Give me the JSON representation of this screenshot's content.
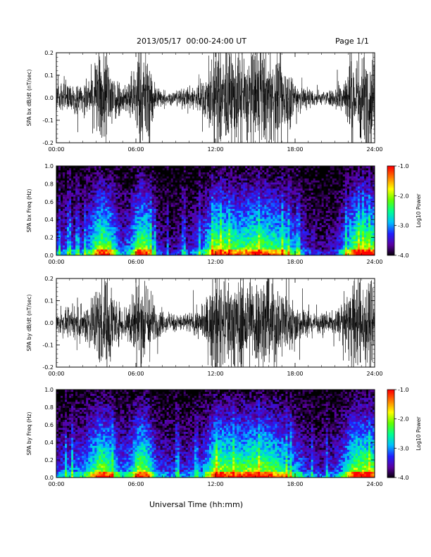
{
  "header": {
    "title": "2013/05/17  00:00-24:00 UT",
    "page": "Page 1/1"
  },
  "xlabel": "Universal Time (hh:mm)",
  "chart_data": [
    {
      "type": "line",
      "ylabel": "SPA bx dB/dt (nT/sec)",
      "xlim": [
        "00:00",
        "24:00"
      ],
      "ylim": [
        -0.2,
        0.2
      ],
      "x_ticks": [
        "00:00",
        "06:00",
        "12:00",
        "18:00",
        "24:00"
      ],
      "y_ticks": [
        "-0.2",
        "-0.1",
        "0.0",
        "0.1",
        "0.2"
      ],
      "color": "#000000",
      "amplitude_envelope": {
        "hours": [
          0,
          1,
          2,
          2.8,
          3.3,
          4,
          4.6,
          5,
          5.6,
          6.2,
          6.8,
          7.6,
          8.5,
          10,
          11,
          12,
          13,
          14,
          15,
          16,
          17,
          17.5,
          18,
          19,
          20,
          21,
          21.8,
          22.5,
          23.3,
          24
        ],
        "values": [
          0.06,
          0.07,
          0.06,
          0.14,
          0.22,
          0.22,
          0.1,
          0.06,
          0.1,
          0.22,
          0.22,
          0.05,
          0.03,
          0.05,
          0.08,
          0.22,
          0.22,
          0.22,
          0.22,
          0.22,
          0.18,
          0.15,
          0.1,
          0.05,
          0.03,
          0.04,
          0.12,
          0.22,
          0.22,
          0.22
        ]
      }
    },
    {
      "type": "heatmap",
      "ylabel": "SPA bx Freq (Hz)",
      "xlim": [
        "00:00",
        "24:00"
      ],
      "ylim": [
        0.0,
        1.0
      ],
      "x_ticks": [
        "00:00",
        "06:00",
        "12:00",
        "18:00",
        "24:00"
      ],
      "y_ticks": [
        "0.0",
        "0.2",
        "0.4",
        "0.6",
        "0.8",
        "1.0"
      ],
      "colorbar": {
        "label": "Log10 Power",
        "range": [
          -4.0,
          -1.0
        ],
        "ticks": [
          "-1.0",
          "-2.0",
          "-3.0",
          "-4.0"
        ],
        "colormap": [
          "#000000",
          "#5a00a0",
          "#2020ff",
          "#00c0ff",
          "#00ff90",
          "#60ff00",
          "#ffff00",
          "#ff8000",
          "#ff0000"
        ]
      },
      "activity_profile": {
        "hours": [
          0,
          1,
          2,
          2.8,
          3.3,
          4,
          4.6,
          5,
          5.6,
          6.2,
          6.8,
          7.6,
          8.5,
          10,
          11,
          12,
          13,
          14,
          15,
          16,
          17,
          17.5,
          18,
          19,
          20,
          21,
          21.8,
          22.5,
          23.3,
          24
        ],
        "values": [
          0.35,
          0.4,
          0.35,
          0.7,
          0.95,
          0.85,
          0.5,
          0.35,
          0.5,
          0.95,
          0.9,
          0.3,
          0.2,
          0.3,
          0.45,
          0.95,
          0.85,
          0.8,
          0.9,
          0.85,
          0.75,
          0.65,
          0.5,
          0.3,
          0.2,
          0.25,
          0.55,
          0.9,
          0.95,
          0.85
        ]
      }
    },
    {
      "type": "line",
      "ylabel": "SPA by dB/dt (nT/sec)",
      "xlim": [
        "00:00",
        "24:00"
      ],
      "ylim": [
        -0.2,
        0.2
      ],
      "x_ticks": [
        "00:00",
        "06:00",
        "12:00",
        "18:00",
        "24:00"
      ],
      "y_ticks": [
        "-0.2",
        "-0.1",
        "0.0",
        "0.1",
        "0.2"
      ],
      "color": "#000000",
      "amplitude_envelope": {
        "hours": [
          0,
          1,
          2,
          2.8,
          3.3,
          4,
          4.6,
          5,
          5.6,
          6.2,
          6.8,
          7.6,
          8.5,
          10,
          11,
          12,
          13,
          14,
          15,
          16,
          17,
          17.5,
          18,
          19,
          20,
          21,
          21.8,
          22.5,
          23.3,
          24
        ],
        "values": [
          0.05,
          0.06,
          0.08,
          0.15,
          0.22,
          0.22,
          0.1,
          0.08,
          0.12,
          0.22,
          0.22,
          0.07,
          0.04,
          0.05,
          0.07,
          0.22,
          0.22,
          0.22,
          0.22,
          0.22,
          0.18,
          0.14,
          0.1,
          0.06,
          0.04,
          0.05,
          0.12,
          0.22,
          0.22,
          0.22
        ]
      }
    },
    {
      "type": "heatmap",
      "ylabel": "SPA by Freq (Hz)",
      "xlim": [
        "00:00",
        "24:00"
      ],
      "ylim": [
        0.0,
        1.0
      ],
      "x_ticks": [
        "00:00",
        "06:00",
        "12:00",
        "18:00",
        "24:00"
      ],
      "y_ticks": [
        "0.0",
        "0.2",
        "0.4",
        "0.6",
        "0.8",
        "1.0"
      ],
      "colorbar": {
        "label": "Log10 Power",
        "range": [
          -4.0,
          -1.0
        ],
        "ticks": [
          "-1.0",
          "-2.0",
          "-3.0",
          "-4.0"
        ],
        "colormap": [
          "#000000",
          "#5a00a0",
          "#2020ff",
          "#00c0ff",
          "#00ff90",
          "#60ff00",
          "#ffff00",
          "#ff8000",
          "#ff0000"
        ]
      },
      "activity_profile": {
        "hours": [
          0,
          1,
          2,
          2.8,
          3.3,
          4,
          4.6,
          5,
          5.6,
          6.2,
          6.8,
          7.6,
          8.5,
          10,
          11,
          12,
          13,
          14,
          15,
          16,
          17,
          17.5,
          18,
          19,
          20,
          21,
          21.8,
          22.5,
          23.3,
          24
        ],
        "values": [
          0.35,
          0.45,
          0.5,
          0.75,
          0.95,
          0.85,
          0.55,
          0.45,
          0.55,
          0.95,
          0.9,
          0.4,
          0.35,
          0.35,
          0.45,
          0.95,
          0.9,
          0.85,
          0.95,
          0.9,
          0.75,
          0.65,
          0.55,
          0.35,
          0.3,
          0.35,
          0.6,
          0.95,
          0.95,
          0.85
        ]
      }
    }
  ]
}
